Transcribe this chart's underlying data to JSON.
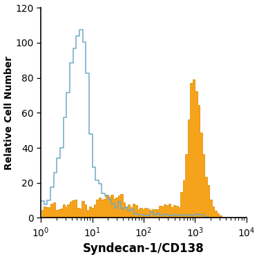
{
  "title": "",
  "xlabel": "Syndecan-1/CD138",
  "ylabel": "Relative Cell Number",
  "ylim": [
    0,
    120
  ],
  "yticks": [
    0,
    20,
    40,
    60,
    80,
    100,
    120
  ],
  "blue_line_color": "#6fa8c8",
  "orange_fill_color": "#f5a31a",
  "orange_edge_color": "#e09010",
  "bg_color": "#ffffff",
  "xlabel_fontsize": 12,
  "ylabel_fontsize": 10,
  "tick_fontsize": 10
}
